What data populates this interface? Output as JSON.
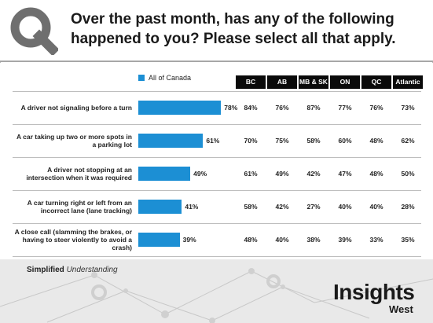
{
  "header": {
    "title": "Over the past month, has any of the following happened to you? Please select all that apply."
  },
  "footer": {
    "tagline_bold": "Simplified",
    "tagline_italic": "Understanding",
    "brand_main": "Insights",
    "brand_sub": "West"
  },
  "colors": {
    "bar": "#1c8fd4",
    "header_bg": "#0a0a0a"
  },
  "chart_data": {
    "type": "bar",
    "orientation": "horizontal",
    "legend": [
      "All of Canada"
    ],
    "categories": [
      "A driver not signaling before a turn",
      "A car taking up two or more spots in a parking lot",
      "A driver not stopping at an intersection when it was required",
      "A car turning right or left from an incorrect lane (lane tracking)",
      "A close call (slamming the brakes, or having to steer violently to avoid a crash)"
    ],
    "series": [
      {
        "name": "All of Canada",
        "values": [
          78,
          61,
          49,
          41,
          39
        ]
      }
    ],
    "value_labels": [
      "78%",
      "61%",
      "49%",
      "41%",
      "39%"
    ],
    "table": {
      "columns": [
        "BC",
        "AB",
        "MB & SK",
        "ON",
        "QC",
        "Atlantic"
      ],
      "rows": [
        [
          "84%",
          "76%",
          "87%",
          "77%",
          "76%",
          "73%"
        ],
        [
          "70%",
          "75%",
          "58%",
          "60%",
          "48%",
          "62%"
        ],
        [
          "61%",
          "49%",
          "42%",
          "47%",
          "48%",
          "50%"
        ],
        [
          "58%",
          "42%",
          "27%",
          "40%",
          "40%",
          "28%"
        ],
        [
          "48%",
          "40%",
          "38%",
          "39%",
          "33%",
          "35%"
        ]
      ]
    },
    "xlim": [
      0,
      100
    ],
    "grid": false
  }
}
